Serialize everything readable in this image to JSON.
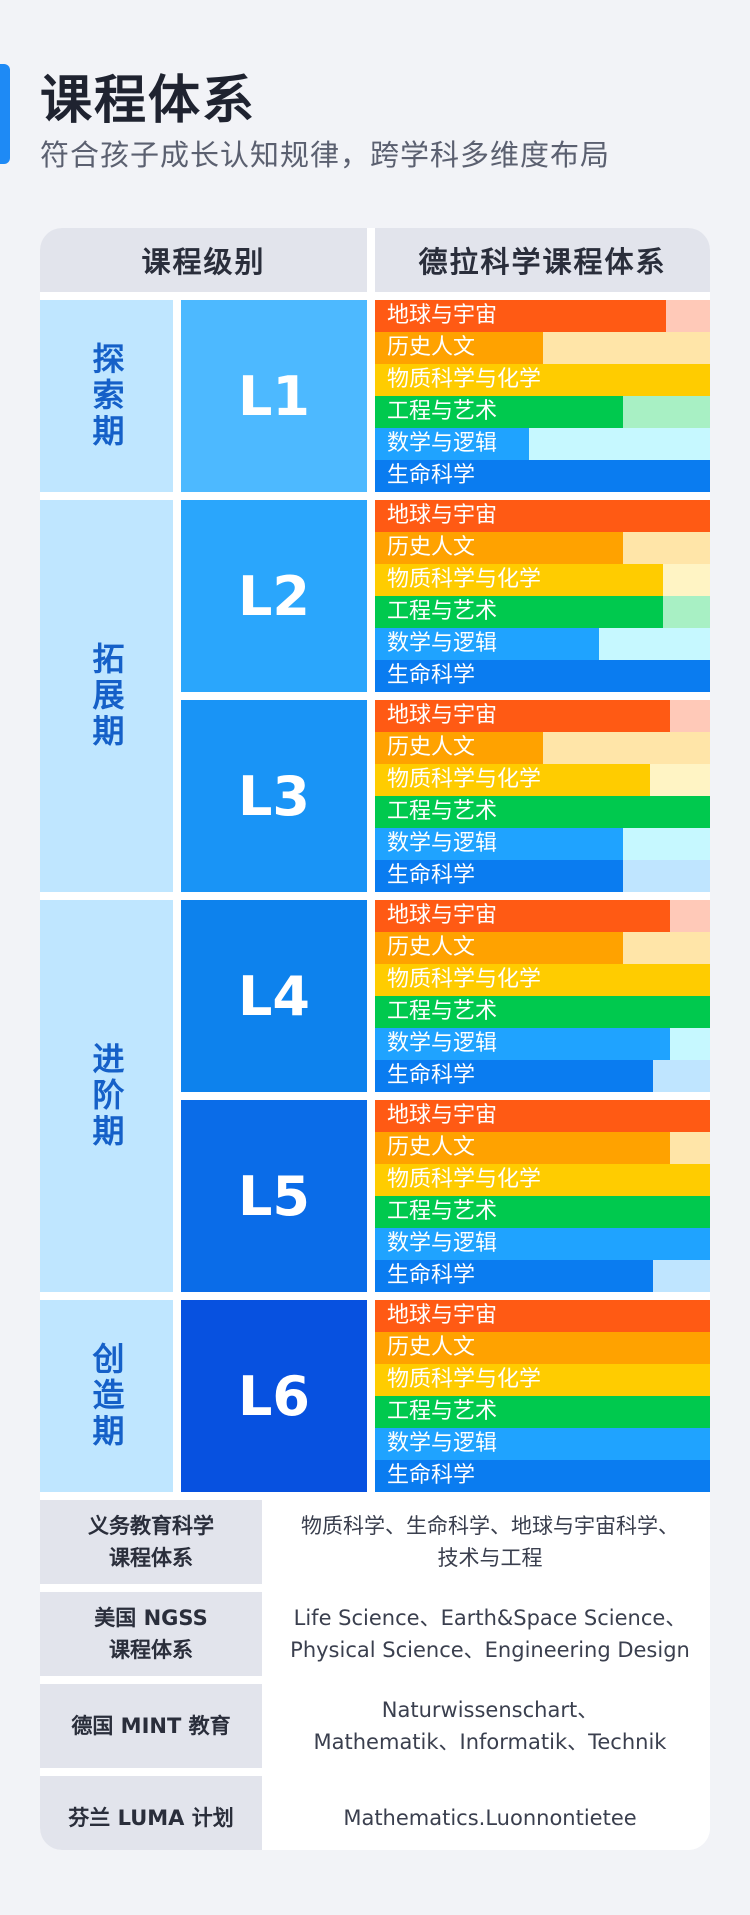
{
  "header": {
    "title": "课程体系",
    "subtitle": "符合孩子成长认知规律，跨学科多维度布局"
  },
  "table": {
    "col_level": "课程级别",
    "col_system": "德拉科学课程体系",
    "phases": [
      {
        "label": "探索期",
        "levels": 1
      },
      {
        "label": "拓展期",
        "levels": 2
      },
      {
        "label": "进阶期",
        "levels": 2
      },
      {
        "label": "创造期",
        "levels": 1
      }
    ],
    "subject_colors": [
      {
        "fill": "#ff5a14",
        "light": "#ffc9b8"
      },
      {
        "fill": "#ffa200",
        "light": "#ffe5a8"
      },
      {
        "fill": "#ffcc00",
        "light": "#fff4c4"
      },
      {
        "fill": "#00c94e",
        "light": "#a8f0c4"
      },
      {
        "fill": "#1fa3ff",
        "light": "#c6f8ff"
      },
      {
        "fill": "#0a7cf0",
        "light": "#bfe5ff"
      }
    ],
    "levels": [
      {
        "name": "L1",
        "color": "#4db9ff",
        "subjects": [
          {
            "label": "地球与宇宙",
            "progress": 0.87
          },
          {
            "label": "历史人文",
            "progress": 0.5
          },
          {
            "label": "物质科学与化学",
            "progress": 1.0
          },
          {
            "label": "工程与艺术",
            "progress": 0.74
          },
          {
            "label": "数学与逻辑",
            "progress": 0.46
          },
          {
            "label": "生命科学",
            "progress": 1.0
          }
        ]
      },
      {
        "name": "L2",
        "color": "#2aa6fc",
        "subjects": [
          {
            "label": "地球与宇宙",
            "progress": 1.0
          },
          {
            "label": "历史人文",
            "progress": 0.74
          },
          {
            "label": "物质科学与化学",
            "progress": 0.86
          },
          {
            "label": "工程与艺术",
            "progress": 0.86
          },
          {
            "label": "数学与逻辑",
            "progress": 0.67
          },
          {
            "label": "生命科学",
            "progress": 1.0
          }
        ]
      },
      {
        "name": "L3",
        "color": "#1994f6",
        "subjects": [
          {
            "label": "地球与宇宙",
            "progress": 0.88
          },
          {
            "label": "历史人文",
            "progress": 0.5
          },
          {
            "label": "物质科学与化学",
            "progress": 0.82
          },
          {
            "label": "工程与艺术",
            "progress": 1.0
          },
          {
            "label": "数学与逻辑",
            "progress": 0.74
          },
          {
            "label": "生命科学",
            "progress": 0.74
          }
        ]
      },
      {
        "name": "L4",
        "color": "#0d82ed",
        "subjects": [
          {
            "label": "地球与宇宙",
            "progress": 0.88
          },
          {
            "label": "历史人文",
            "progress": 0.74
          },
          {
            "label": "物质科学与化学",
            "progress": 1.0
          },
          {
            "label": "工程与艺术",
            "progress": 1.0
          },
          {
            "label": "数学与逻辑",
            "progress": 0.88
          },
          {
            "label": "生命科学",
            "progress": 0.83
          }
        ]
      },
      {
        "name": "L5",
        "color": "#0a6ce8",
        "subjects": [
          {
            "label": "地球与宇宙",
            "progress": 1.0
          },
          {
            "label": "历史人文",
            "progress": 0.88
          },
          {
            "label": "物质科学与化学",
            "progress": 1.0
          },
          {
            "label": "工程与艺术",
            "progress": 1.0
          },
          {
            "label": "数学与逻辑",
            "progress": 1.0
          },
          {
            "label": "生命科学",
            "progress": 0.83
          }
        ]
      },
      {
        "name": "L6",
        "color": "#0751e0",
        "subjects": [
          {
            "label": "地球与宇宙",
            "progress": 1.0
          },
          {
            "label": "历史人文",
            "progress": 1.0
          },
          {
            "label": "物质科学与化学",
            "progress": 1.0
          },
          {
            "label": "工程与艺术",
            "progress": 1.0
          },
          {
            "label": "数学与逻辑",
            "progress": 1.0
          },
          {
            "label": "生命科学",
            "progress": 1.0
          }
        ]
      }
    ]
  },
  "frameworks": [
    {
      "name_lines": [
        "义务教育科学",
        "课程体系"
      ],
      "desc_lines": [
        "物质科学、生命科学、地球与宇宙科学、",
        "技术与工程"
      ]
    },
    {
      "name_lines": [
        "美国 NGSS",
        "课程体系"
      ],
      "desc_lines": [
        "Life Science、Earth&Space Science、",
        "Physical Science、Engineering Design"
      ]
    },
    {
      "name_lines": [
        "德国 MINT 教育"
      ],
      "desc_lines": [
        "Naturwissenschart、",
        "Mathematik、Informatik、Technik"
      ]
    },
    {
      "name_lines": [
        "芬兰 LUMA 计划"
      ],
      "desc_lines": [
        "Mathematics.Luonnontietee"
      ]
    }
  ]
}
